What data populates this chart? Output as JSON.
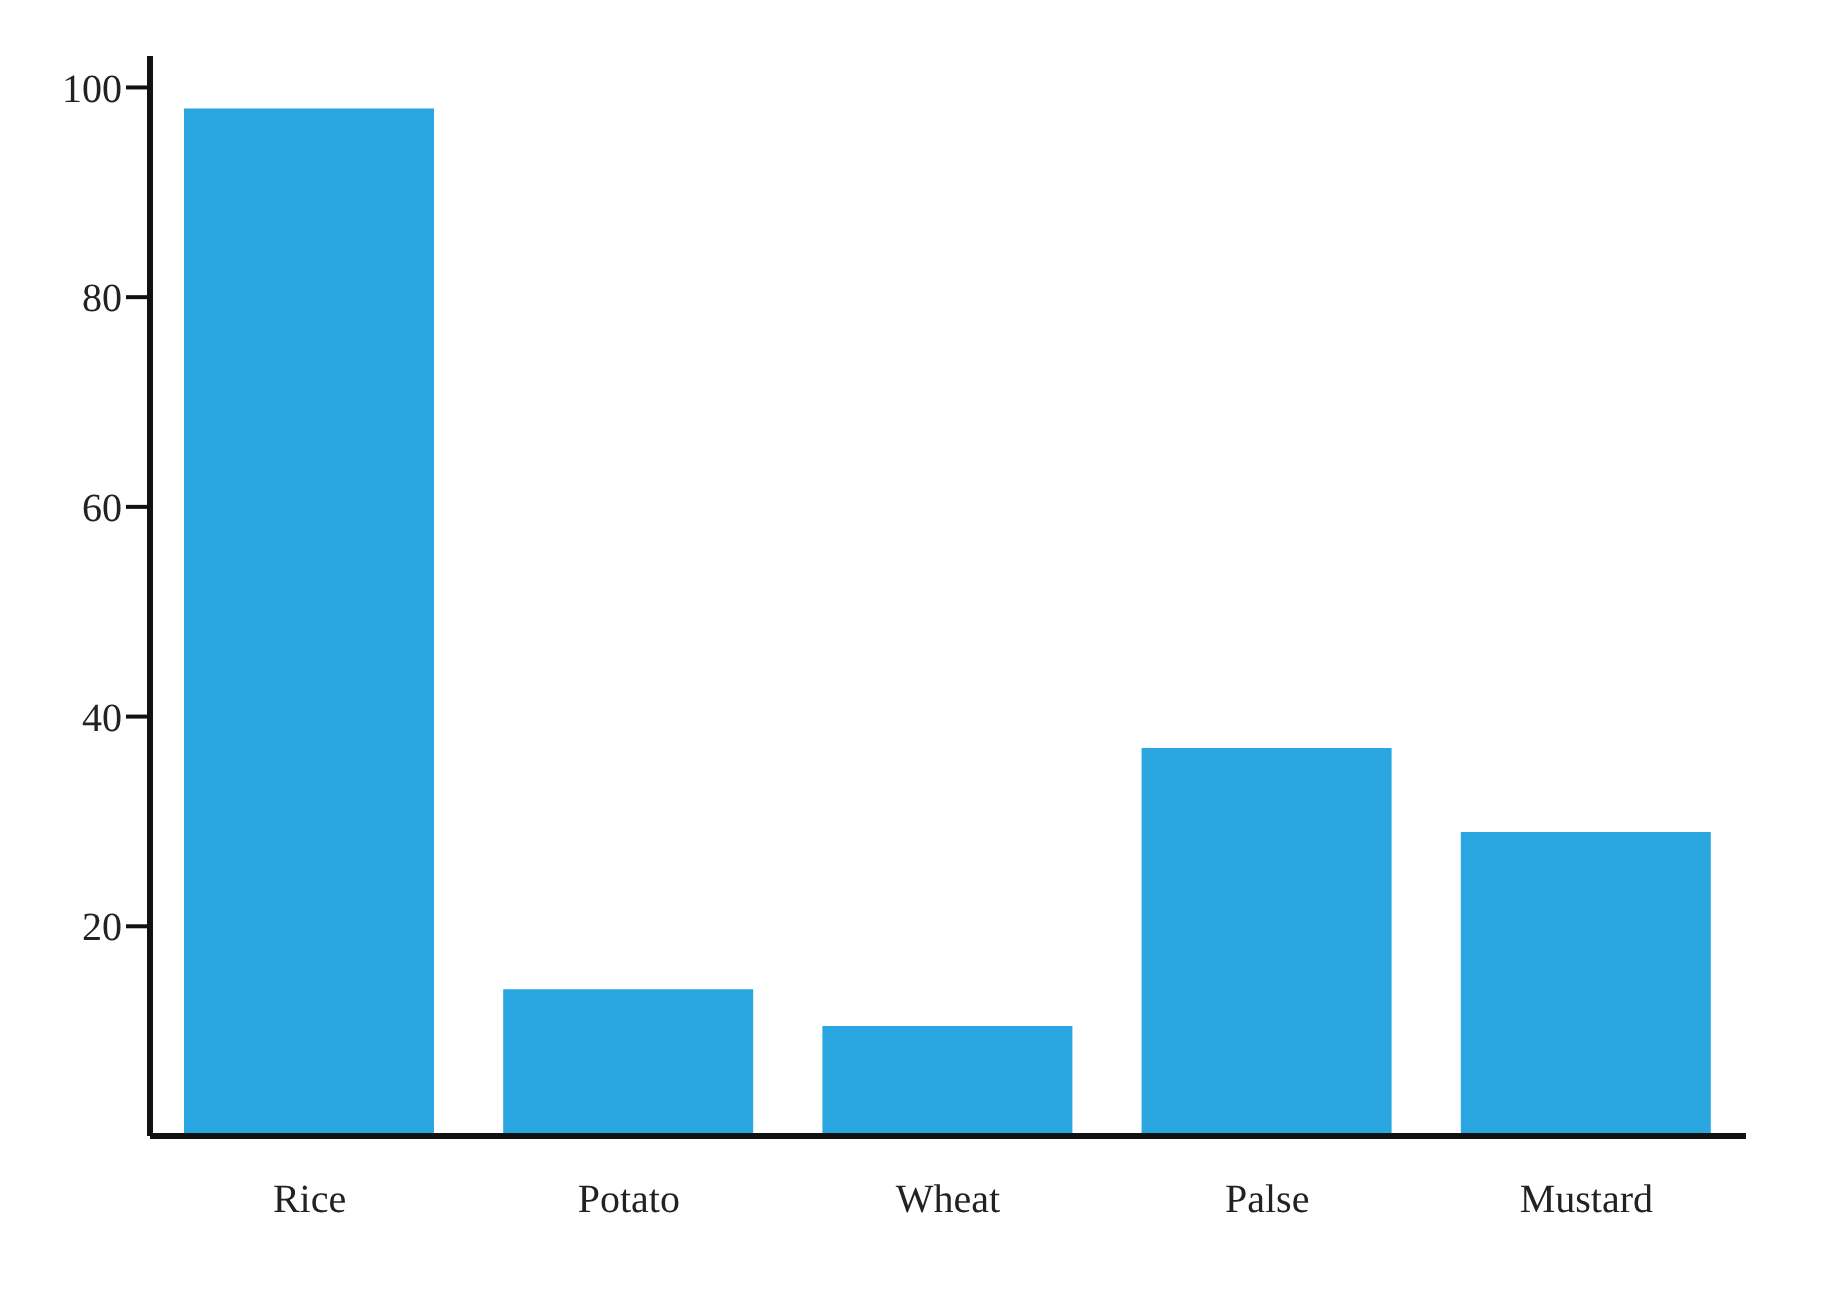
{
  "chart_data": {
    "type": "bar",
    "categories": [
      "Rice",
      "Potato",
      "Wheat",
      "Palse",
      "Mustard"
    ],
    "values": [
      98,
      14,
      10.5,
      37,
      29
    ],
    "color": "#29a6e0",
    "ylim": [
      0,
      103
    ],
    "yticks": [
      20,
      40,
      60,
      80,
      100
    ],
    "grid": false
  }
}
